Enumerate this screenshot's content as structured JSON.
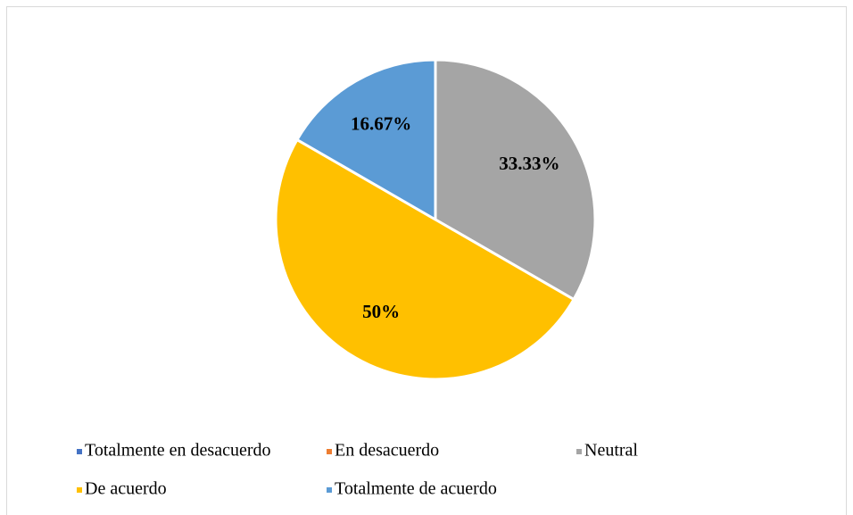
{
  "chart_data": {
    "type": "pie",
    "categories": [
      "Totalmente en desacuerdo",
      "En desacuerdo",
      "Neutral",
      "De acuerdo",
      "Totalmente de acuerdo"
    ],
    "values": [
      0,
      0,
      33.33,
      50,
      16.67
    ],
    "value_labels": [
      null,
      null,
      "33.33%",
      "50%",
      "16.67%"
    ],
    "colors": [
      "#4472c4",
      "#ed7d31",
      "#a5a5a5",
      "#ffc000",
      "#5b9bd5"
    ],
    "legend": "bottom"
  }
}
